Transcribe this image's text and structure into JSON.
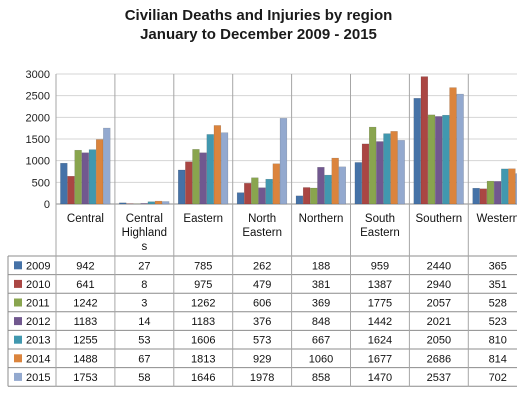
{
  "chart_data": {
    "type": "bar",
    "title": "Civilian Deaths and Injuries by region",
    "subtitle": "January to December 2009 - 2015",
    "categories": [
      "Central",
      "Central Highlands",
      "Eastern",
      "North Eastern",
      "Northern",
      "South Eastern",
      "Southern",
      "Western"
    ],
    "category_label_lines": [
      [
        "Central"
      ],
      [
        "Central",
        "Highland",
        "s"
      ],
      [
        "Eastern"
      ],
      [
        "North",
        "Eastern"
      ],
      [
        "Northern"
      ],
      [
        "South",
        "Eastern"
      ],
      [
        "Southern"
      ],
      [
        "Western"
      ]
    ],
    "ylim": [
      0,
      3000
    ],
    "yticks": [
      0,
      500,
      1000,
      1500,
      2000,
      2500,
      3000
    ],
    "grid": true,
    "legend": "table-left",
    "series": [
      {
        "name": "2009",
        "color": "#4572a7",
        "values": [
          942,
          27,
          785,
          262,
          188,
          959,
          2440,
          365
        ]
      },
      {
        "name": "2010",
        "color": "#aa4643",
        "values": [
          641,
          8,
          975,
          479,
          381,
          1387,
          2940,
          351
        ]
      },
      {
        "name": "2011",
        "color": "#89a54e",
        "values": [
          1242,
          3,
          1262,
          606,
          369,
          1775,
          2057,
          528
        ]
      },
      {
        "name": "2012",
        "color": "#71588f",
        "values": [
          1183,
          14,
          1183,
          376,
          848,
          1442,
          2021,
          523
        ]
      },
      {
        "name": "2013",
        "color": "#4198af",
        "values": [
          1255,
          53,
          1606,
          573,
          667,
          1624,
          2050,
          810
        ]
      },
      {
        "name": "2014",
        "color": "#db843d",
        "values": [
          1488,
          67,
          1813,
          929,
          1060,
          1677,
          2686,
          814
        ]
      },
      {
        "name": "2015",
        "color": "#93a9cf",
        "values": [
          1753,
          58,
          1646,
          1978,
          858,
          1470,
          2537,
          702
        ]
      }
    ]
  }
}
